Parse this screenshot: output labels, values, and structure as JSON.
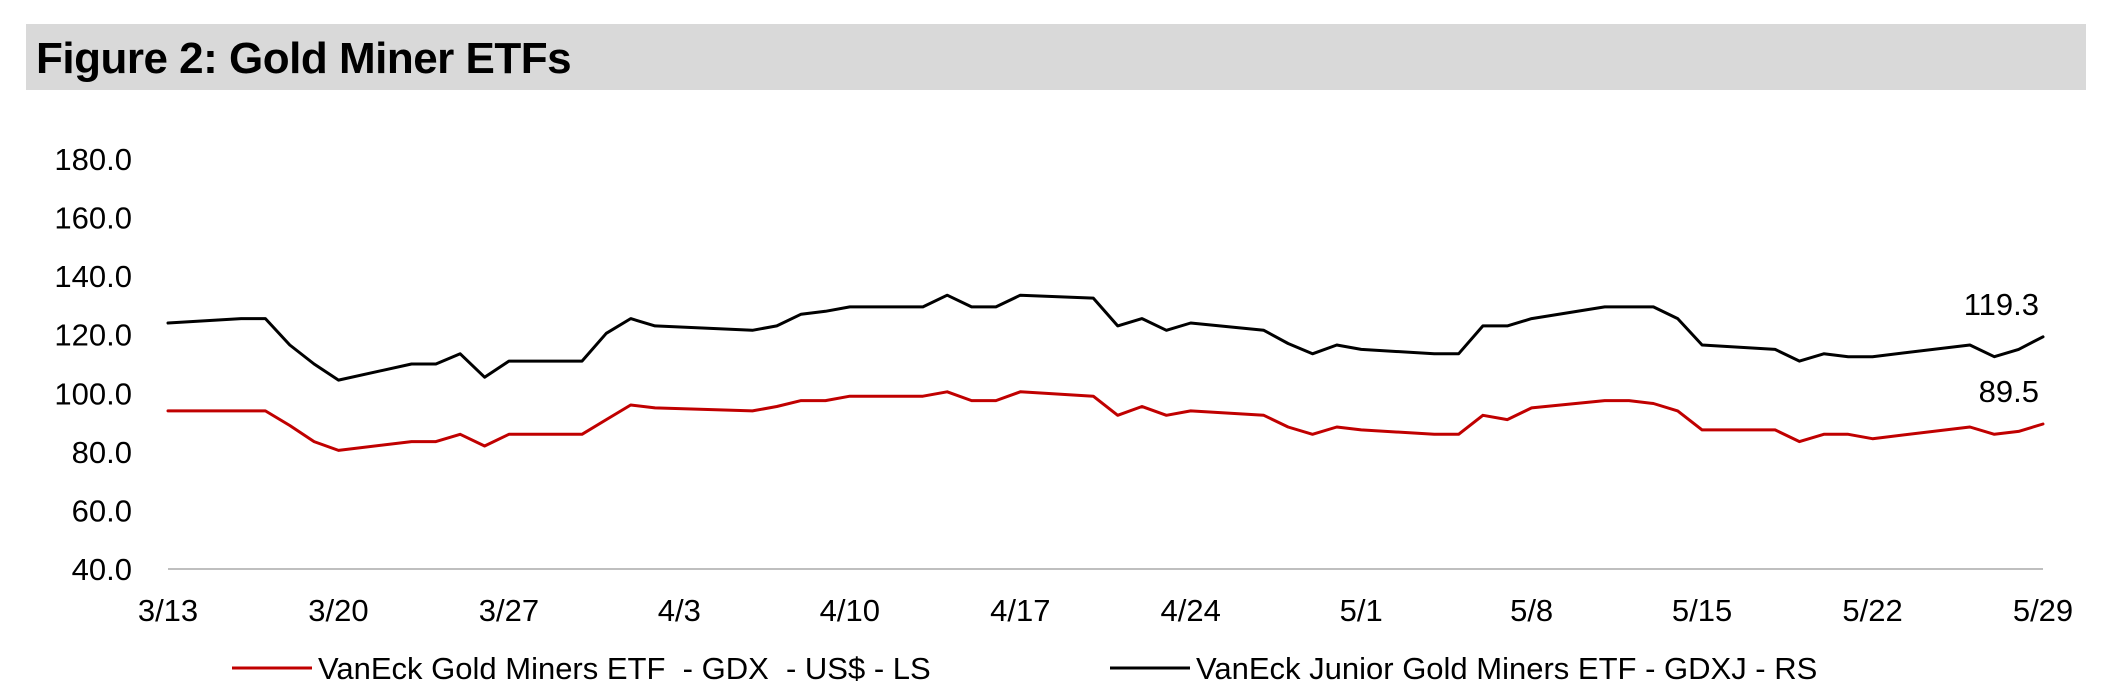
{
  "title": "Figure 2: Gold Miner ETFs",
  "colors": {
    "background": "#ffffff",
    "title_bar": "#d9d9d9",
    "gdx": "#c00000",
    "gdxj": "#000000",
    "axis": "#bfbfbf"
  },
  "chart_data": {
    "type": "line",
    "title": "Figure 2: Gold Miner ETFs",
    "xlabel": "",
    "ylabel": "",
    "ylim": [
      40,
      180
    ],
    "yticks": [
      "40.0",
      "60.0",
      "80.0",
      "100.0",
      "120.0",
      "140.0",
      "160.0",
      "180.0"
    ],
    "xlim": [
      "3/13",
      "5/29"
    ],
    "xticks": [
      "3/13",
      "3/20",
      "3/27",
      "4/3",
      "4/10",
      "4/17",
      "4/24",
      "5/1",
      "5/8",
      "5/15",
      "5/22",
      "5/29"
    ],
    "grid": false,
    "legend_position": "bottom",
    "series": [
      {
        "name": "VanEck Gold Miners ETF  - GDX  - US$ - LS",
        "color": "#c00000",
        "points": [
          [
            "3/13",
            94.0
          ],
          [
            "3/16",
            94.0
          ],
          [
            "3/17",
            94.0
          ],
          [
            "3/18",
            89.0
          ],
          [
            "3/19",
            83.5
          ],
          [
            "3/20",
            80.5
          ],
          [
            "3/23",
            83.5
          ],
          [
            "3/24",
            83.5
          ],
          [
            "3/25",
            86.0
          ],
          [
            "3/26",
            82.0
          ],
          [
            "3/27",
            86.0
          ],
          [
            "3/30",
            86.0
          ],
          [
            "3/31",
            91.0
          ],
          [
            "4/1",
            96.0
          ],
          [
            "4/2",
            95.0
          ],
          [
            "4/6",
            94.0
          ],
          [
            "4/7",
            95.5
          ],
          [
            "4/8",
            97.5
          ],
          [
            "4/9",
            97.5
          ],
          [
            "4/10",
            99.0
          ],
          [
            "4/13",
            99.0
          ],
          [
            "4/14",
            100.5
          ],
          [
            "4/15",
            97.5
          ],
          [
            "4/16",
            97.5
          ],
          [
            "4/17",
            100.5
          ],
          [
            "4/20",
            99.0
          ],
          [
            "4/21",
            92.5
          ],
          [
            "4/22",
            95.5
          ],
          [
            "4/23",
            92.5
          ],
          [
            "4/24",
            94.0
          ],
          [
            "4/27",
            92.5
          ],
          [
            "4/28",
            88.5
          ],
          [
            "4/29",
            86.0
          ],
          [
            "4/30",
            88.5
          ],
          [
            "5/1",
            87.5
          ],
          [
            "5/4",
            86.0
          ],
          [
            "5/5",
            86.0
          ],
          [
            "5/6",
            92.5
          ],
          [
            "5/7",
            91.0
          ],
          [
            "5/8",
            95.0
          ],
          [
            "5/11",
            97.5
          ],
          [
            "5/12",
            97.5
          ],
          [
            "5/13",
            96.5
          ],
          [
            "5/14",
            94.0
          ],
          [
            "5/15",
            87.5
          ],
          [
            "5/18",
            87.5
          ],
          [
            "5/19",
            83.5
          ],
          [
            "5/20",
            86.0
          ],
          [
            "5/21",
            86.0
          ],
          [
            "5/22",
            84.5
          ],
          [
            "5/26",
            88.5
          ],
          [
            "5/27",
            86.0
          ],
          [
            "5/28",
            87.0
          ],
          [
            "5/29",
            89.5
          ]
        ],
        "end_label": "89.5"
      },
      {
        "name": "VanEck Junior Gold Miners ETF - GDXJ - RS",
        "color": "#000000",
        "points": [
          [
            "3/13",
            124.0
          ],
          [
            "3/16",
            125.5
          ],
          [
            "3/17",
            125.5
          ],
          [
            "3/18",
            116.5
          ],
          [
            "3/19",
            110.0
          ],
          [
            "3/20",
            104.5
          ],
          [
            "3/23",
            110.0
          ],
          [
            "3/24",
            110.0
          ],
          [
            "3/25",
            113.5
          ],
          [
            "3/26",
            105.5
          ],
          [
            "3/27",
            111.0
          ],
          [
            "3/30",
            111.0
          ],
          [
            "3/31",
            120.5
          ],
          [
            "4/1",
            125.5
          ],
          [
            "4/2",
            123.0
          ],
          [
            "4/6",
            121.5
          ],
          [
            "4/7",
            123.0
          ],
          [
            "4/8",
            127.0
          ],
          [
            "4/9",
            128.0
          ],
          [
            "4/10",
            129.5
          ],
          [
            "4/13",
            129.5
          ],
          [
            "4/14",
            133.5
          ],
          [
            "4/15",
            129.5
          ],
          [
            "4/16",
            129.5
          ],
          [
            "4/17",
            133.5
          ],
          [
            "4/20",
            132.5
          ],
          [
            "4/21",
            123.0
          ],
          [
            "4/22",
            125.5
          ],
          [
            "4/23",
            121.5
          ],
          [
            "4/24",
            124.0
          ],
          [
            "4/27",
            121.5
          ],
          [
            "4/28",
            117.0
          ],
          [
            "4/29",
            113.5
          ],
          [
            "4/30",
            116.5
          ],
          [
            "5/1",
            115.0
          ],
          [
            "5/4",
            113.5
          ],
          [
            "5/5",
            113.5
          ],
          [
            "5/6",
            123.0
          ],
          [
            "5/7",
            123.0
          ],
          [
            "5/8",
            125.5
          ],
          [
            "5/11",
            129.5
          ],
          [
            "5/12",
            129.5
          ],
          [
            "5/13",
            129.5
          ],
          [
            "5/14",
            125.5
          ],
          [
            "5/15",
            116.5
          ],
          [
            "5/18",
            115.0
          ],
          [
            "5/19",
            111.0
          ],
          [
            "5/20",
            113.5
          ],
          [
            "5/21",
            112.5
          ],
          [
            "5/22",
            112.5
          ],
          [
            "5/26",
            116.5
          ],
          [
            "5/27",
            112.5
          ],
          [
            "5/28",
            115.0
          ],
          [
            "5/29",
            119.3
          ]
        ],
        "end_label": "119.3"
      }
    ]
  }
}
